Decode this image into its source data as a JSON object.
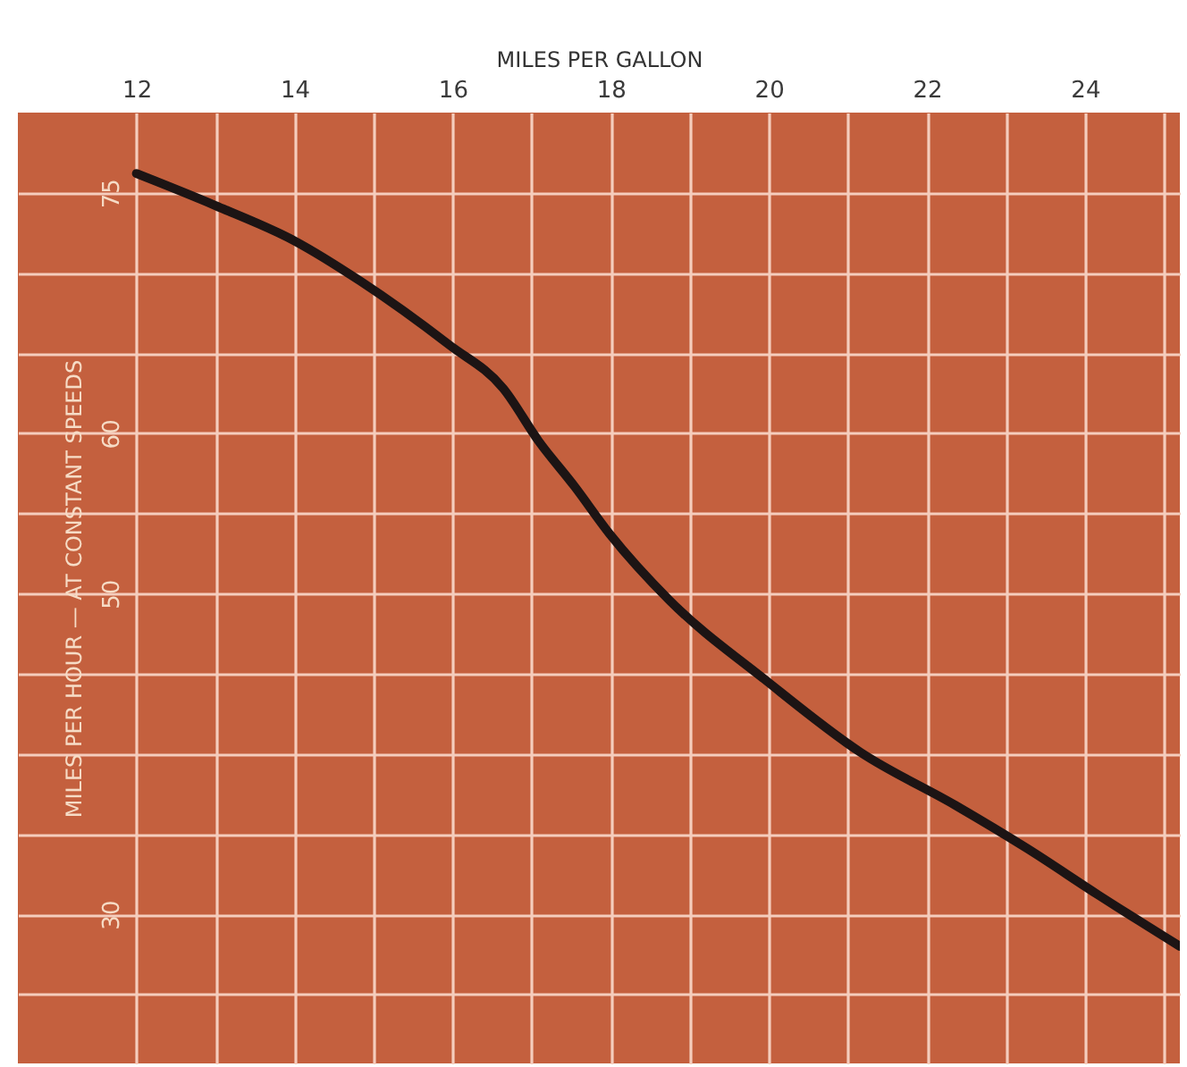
{
  "chart_data": {
    "type": "line",
    "xlabel": "MILES PER GALLON",
    "ylabel": "MILES PER HOUR — AT CONSTANT SPEEDS",
    "x": [
      12,
      13,
      14,
      14.83,
      15.96,
      16.64,
      17.09,
      17.54,
      17.99,
      18.74,
      19.96,
      21.16,
      22.36,
      23.27,
      24.17,
      25.2
    ],
    "series": [
      {
        "color": "#1c1414",
        "values": [
          76.2,
          74.2,
          72,
          69.5,
          65.5,
          62.8,
          59.5,
          56.7,
          53.7,
          49.6,
          44.6,
          40.1,
          36.8,
          34.1,
          31.2,
          28
        ]
      }
    ],
    "xlim": [
      10.5,
      25.2
    ],
    "xticks": [
      12,
      {
        "value": 13,
        "label": null
      },
      14,
      {
        "value": 15,
        "label": null
      },
      16,
      {
        "value": 17,
        "label": null
      },
      18,
      {
        "value": 19,
        "label": null
      },
      20,
      {
        "value": 21,
        "label": null
      },
      22,
      {
        "value": 23,
        "label": null
      },
      24,
      {
        "value": 25,
        "label": null
      }
    ],
    "ylim": [
      20.7,
      80
    ],
    "yticks": [
      75,
      {
        "value": 70,
        "label": null
      },
      {
        "value": 65,
        "label": null
      },
      60,
      {
        "value": 55,
        "label": null
      },
      50,
      {
        "value": 45,
        "label": null
      },
      {
        "value": 40,
        "label": null
      },
      {
        "value": 35,
        "label": null
      },
      30,
      {
        "value": 25,
        "label": null
      }
    ],
    "grid": true,
    "marker": "none",
    "line_style": "solid"
  }
}
